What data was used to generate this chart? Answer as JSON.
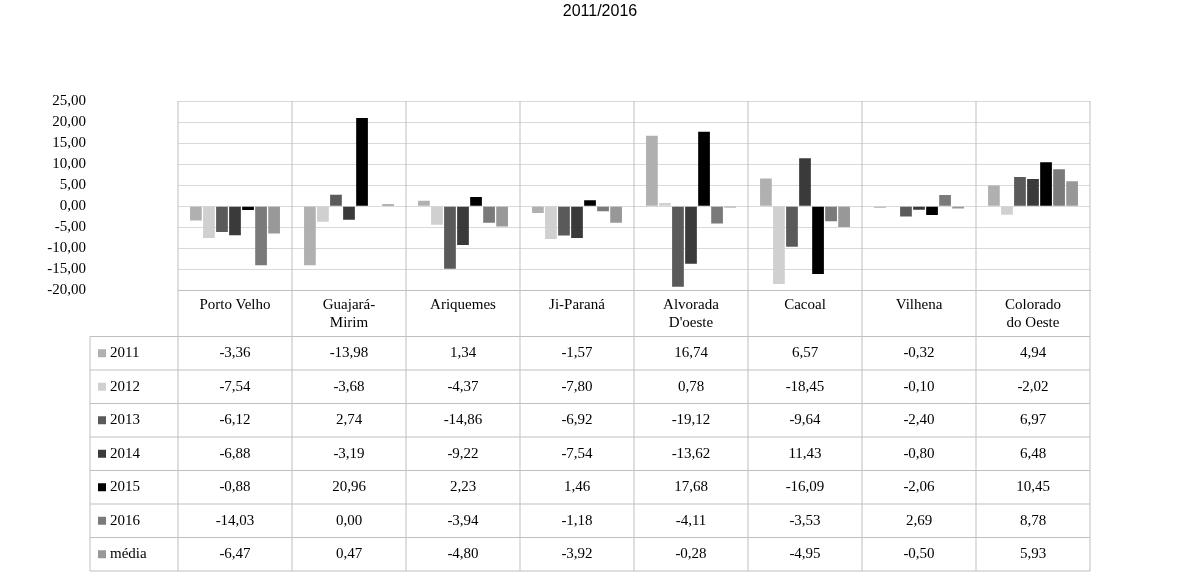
{
  "chart_data": {
    "type": "bar",
    "title": "2011/2016",
    "categories": [
      "Porto Velho",
      "Guajará-Mirim",
      "Ariquemes",
      "Ji-Paraná",
      "Alvorada D'oeste",
      "Cacoal",
      "Vilhena",
      "Colorado do Oeste"
    ],
    "series": [
      {
        "name": "2011",
        "color": "#b0b0b0",
        "values": [
          -3.36,
          -13.98,
          1.34,
          -1.57,
          16.74,
          6.57,
          -0.32,
          4.94
        ],
        "value_labels": [
          "-3,36",
          "-13,98",
          "1,34",
          "-1,57",
          "16,74",
          "6,57",
          "-0,32",
          "4,94"
        ]
      },
      {
        "name": "2012",
        "color": "#d0d0d0",
        "values": [
          -7.54,
          -3.68,
          -4.37,
          -7.8,
          0.78,
          -18.45,
          -0.1,
          -2.02
        ],
        "value_labels": [
          "-7,54",
          "-3,68",
          "-4,37",
          "-7,80",
          "0,78",
          "-18,45",
          "-0,10",
          "-2,02"
        ]
      },
      {
        "name": "2013",
        "color": "#5a5a5a",
        "values": [
          -6.12,
          2.74,
          -14.86,
          -6.92,
          -19.12,
          -9.64,
          -2.4,
          6.97
        ],
        "value_labels": [
          "-6,12",
          "2,74",
          "-14,86",
          "-6,92",
          "-19,12",
          "-9,64",
          "-2,40",
          "6,97"
        ]
      },
      {
        "name": "2014",
        "color": "#3a3a3a",
        "values": [
          -6.88,
          -3.19,
          -9.22,
          -7.54,
          -13.62,
          11.43,
          -0.8,
          6.48
        ],
        "value_labels": [
          "-6,88",
          "-3,19",
          "-9,22",
          "-7,54",
          "-13,62",
          "11,43",
          "-0,80",
          "6,48"
        ]
      },
      {
        "name": "2015",
        "color": "#000000",
        "values": [
          -0.88,
          20.96,
          2.23,
          1.46,
          17.68,
          -16.09,
          -2.06,
          10.45
        ],
        "value_labels": [
          "-0,88",
          "20,96",
          "2,23",
          "1,46",
          "17,68",
          "-16,09",
          "-2,06",
          "10,45"
        ]
      },
      {
        "name": "2016",
        "color": "#7a7a7a",
        "values": [
          -14.03,
          0,
          -3.94,
          -1.18,
          -4.11,
          -3.53,
          2.69,
          8.78
        ],
        "value_labels": [
          "-14,03",
          "0,00",
          "-3,94",
          "-1,18",
          "-4,11",
          "-3,53",
          "2,69",
          "8,78"
        ]
      },
      {
        "name": "média",
        "color": "#989898",
        "values": [
          -6.47,
          0.47,
          -4.8,
          -3.92,
          -0.28,
          -4.95,
          -0.5,
          5.93
        ],
        "value_labels": [
          "-6,47",
          "0,47",
          "-4,80",
          "-3,92",
          "-0,28",
          "-4,95",
          "-0,50",
          "5,93"
        ]
      }
    ],
    "ylim": [
      -20,
      25
    ],
    "yticks": [
      {
        "value": -20,
        "label": "-20,00"
      },
      {
        "value": -15,
        "label": "-15,00"
      },
      {
        "value": -10,
        "label": "-10,00"
      },
      {
        "value": -5,
        "label": "-5,00"
      },
      {
        "value": 0,
        "label": "0,00"
      },
      {
        "value": 5,
        "label": "5,00"
      },
      {
        "value": 10,
        "label": "10,00"
      },
      {
        "value": 15,
        "label": "15,00"
      },
      {
        "value": 20,
        "label": "20,00"
      },
      {
        "value": 25,
        "label": "25,00"
      }
    ],
    "grid": "y",
    "legend": "bottom left"
  }
}
